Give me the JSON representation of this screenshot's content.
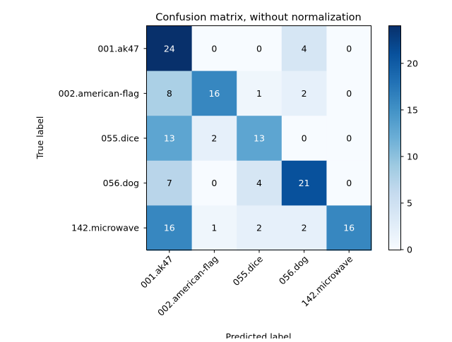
{
  "chart_data": {
    "type": "heatmap",
    "title": "Confusion matrix, without normalization",
    "xlabel": "Predicted label",
    "ylabel": "True label",
    "row_labels": [
      "001.ak47",
      "002.american-flag",
      "055.dice",
      "056.dog",
      "142.microwave"
    ],
    "col_labels": [
      "001.ak47",
      "002.american-flag",
      "055.dice",
      "056.dog",
      "142.microwave"
    ],
    "values": [
      [
        24,
        0,
        0,
        4,
        0
      ],
      [
        8,
        16,
        1,
        2,
        0
      ],
      [
        13,
        2,
        13,
        0,
        0
      ],
      [
        7,
        0,
        4,
        21,
        0
      ],
      [
        16,
        1,
        2,
        2,
        16
      ]
    ],
    "colorbar": {
      "min": 0,
      "max": 24,
      "ticks": [
        0,
        5,
        10,
        15,
        20
      ]
    },
    "colormap": "Blues",
    "grid": false
  }
}
